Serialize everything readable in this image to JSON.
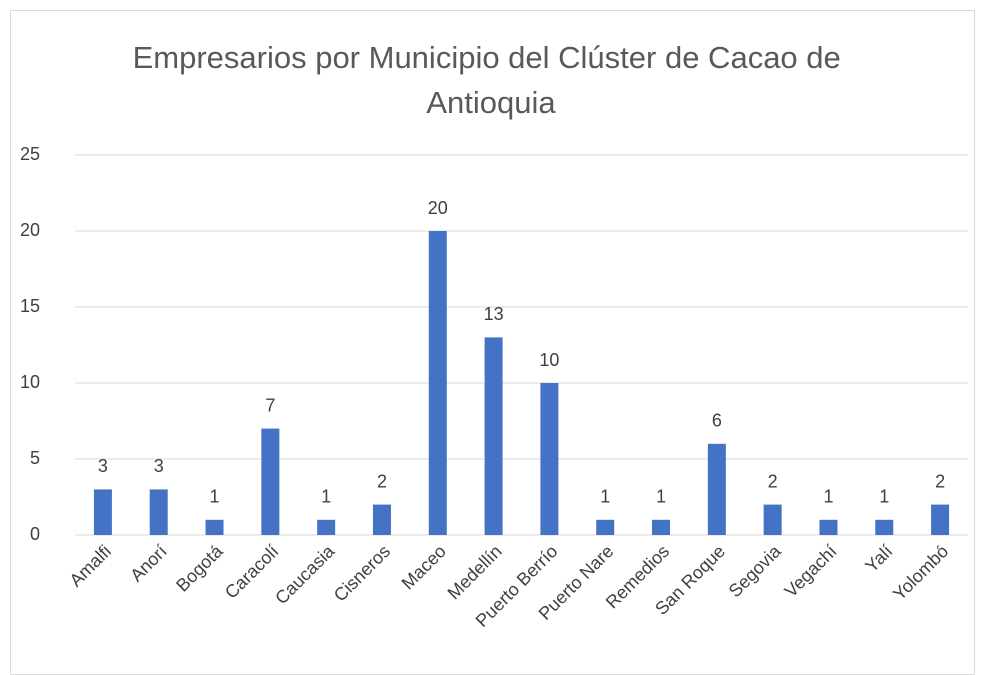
{
  "chart_data": {
    "type": "bar",
    "title": "Empresarios por Municipio del Clúster de Cacao de Antioquia",
    "categories": [
      "Amalfi",
      "Anorí",
      "Bogotá",
      "Caracolí",
      "Caucasia",
      "Cisneros",
      "Maceo",
      "Medellín",
      "Puerto Berrío",
      "Puerto Nare",
      "Remedios",
      "San Roque",
      "Segovia",
      "Vegachí",
      "Yalí",
      "Yolombó"
    ],
    "values": [
      3,
      3,
      1,
      7,
      1,
      2,
      20,
      13,
      10,
      1,
      1,
      6,
      2,
      1,
      1,
      2
    ],
    "color": "#4472c4",
    "ylim": [
      0,
      25
    ],
    "yticks": [
      0,
      5,
      10,
      15,
      20,
      25
    ],
    "grid": true
  }
}
